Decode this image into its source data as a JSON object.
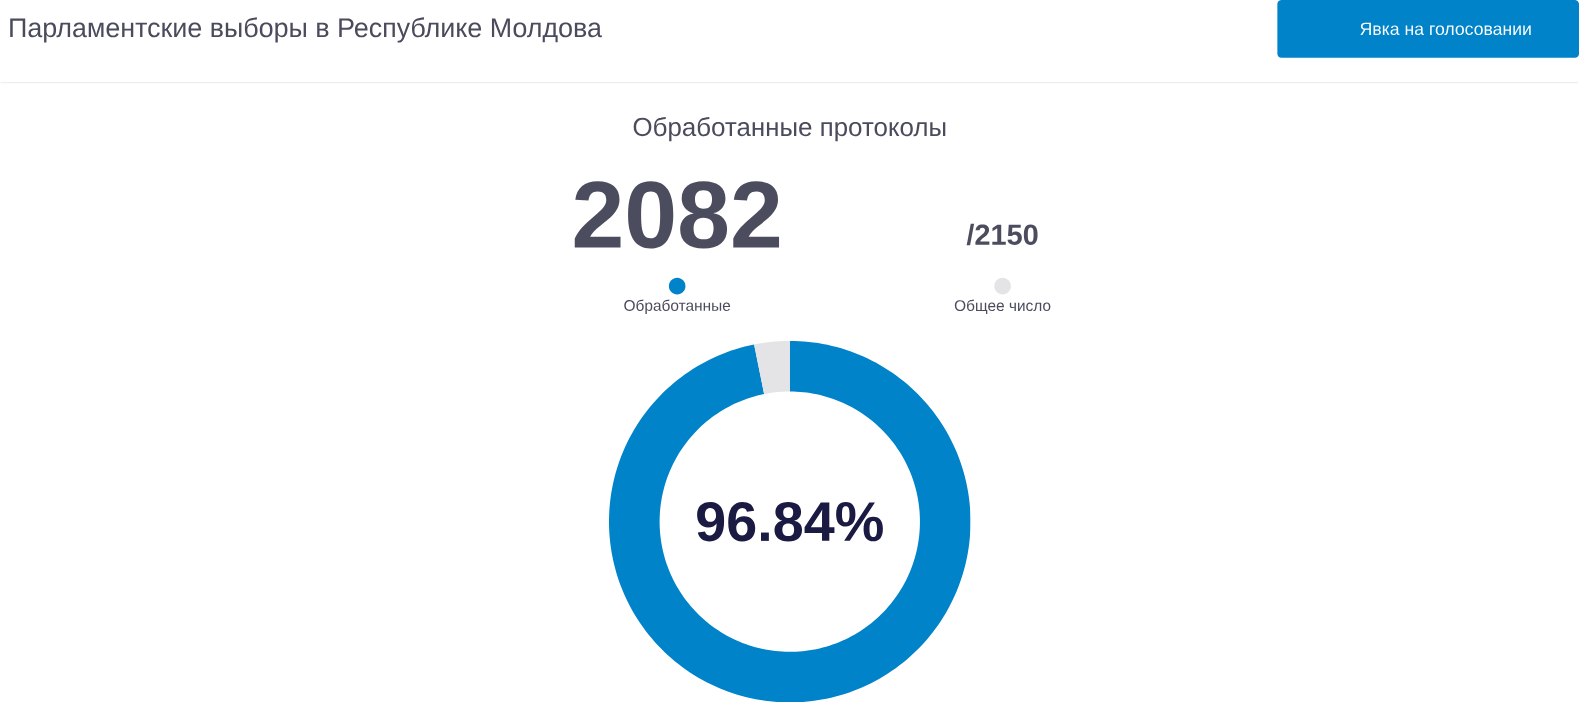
{
  "chart_data": {
    "type": "donut",
    "title": "Парламентские выборы в Республике Молдова",
    "subtitle": "Обработанные протоколы",
    "categories": [
      "Обработанные",
      "Общее число"
    ],
    "values": [
      96.84,
      3.16
    ],
    "colors": [
      "#0083c9",
      "#e4e4e6"
    ],
    "legend": "top",
    "annotations": [
      "2082",
      "/2150",
      "96.84%",
      "Явка на голосовании"
    ]
  }
}
